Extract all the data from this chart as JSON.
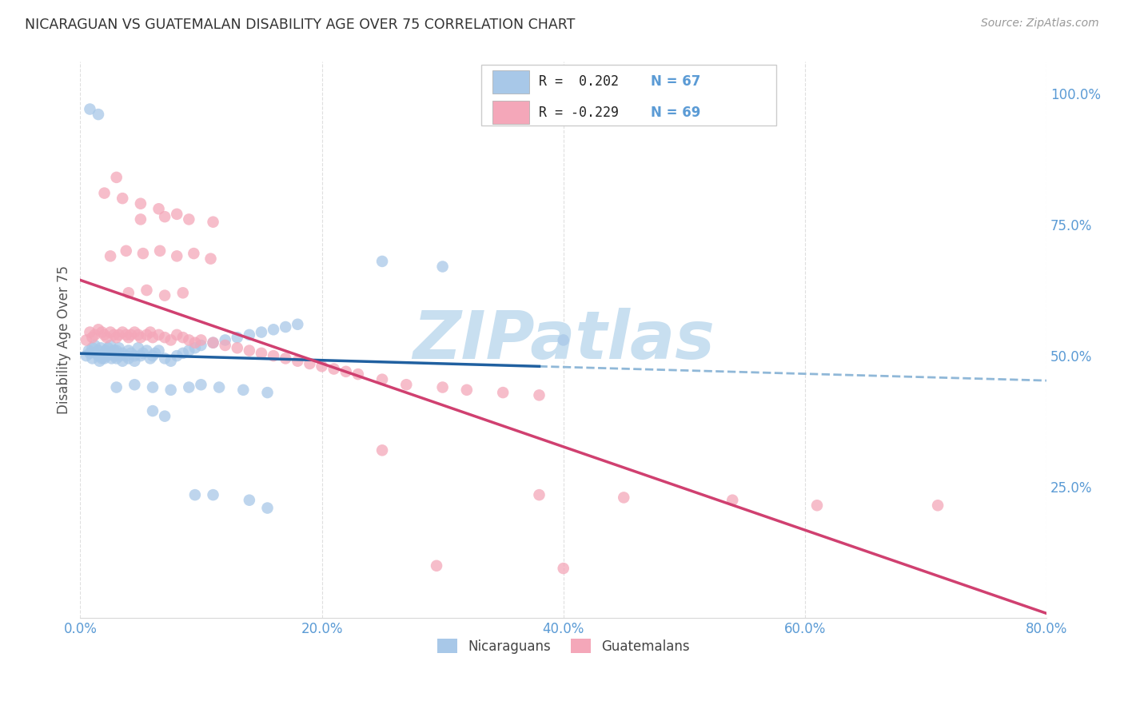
{
  "title": "NICARAGUAN VS GUATEMALAN DISABILITY AGE OVER 75 CORRELATION CHART",
  "source": "Source: ZipAtlas.com",
  "ylabel": "Disability Age Over 75",
  "xlim": [
    0.0,
    0.8
  ],
  "ylim": [
    0.0,
    1.06
  ],
  "xtick_labels": [
    "0.0%",
    "",
    "20.0%",
    "",
    "40.0%",
    "",
    "60.0%",
    "",
    "80.0%"
  ],
  "xtick_positions": [
    0.0,
    0.1,
    0.2,
    0.3,
    0.4,
    0.5,
    0.6,
    0.7,
    0.8
  ],
  "xtick_display": [
    "0.0%",
    "20.0%",
    "40.0%",
    "60.0%",
    "80.0%"
  ],
  "xtick_display_pos": [
    0.0,
    0.2,
    0.4,
    0.6,
    0.8
  ],
  "ytick_labels_right": [
    "25.0%",
    "50.0%",
    "75.0%",
    "100.0%"
  ],
  "ytick_positions_right": [
    0.25,
    0.5,
    0.75,
    1.0
  ],
  "blue_color": "#a8c8e8",
  "pink_color": "#f4a7b9",
  "blue_line_color": "#2060a0",
  "pink_line_color": "#d04070",
  "dashed_line_color": "#90b8d8",
  "title_color": "#333333",
  "axis_color": "#5b9bd5",
  "watermark_color": "#c8dff0",
  "background_color": "#ffffff",
  "grid_color": "#d8d8d8",
  "blue_r": 0.202,
  "pink_r": -0.229,
  "blue_n": 67,
  "pink_n": 69,
  "solid_line_end_x": 0.38,
  "nicaraguan_x": [
    0.005,
    0.007,
    0.008,
    0.01,
    0.01,
    0.012,
    0.013,
    0.015,
    0.015,
    0.016,
    0.017,
    0.018,
    0.02,
    0.02,
    0.021,
    0.022,
    0.023,
    0.025,
    0.025,
    0.026,
    0.028,
    0.028,
    0.03,
    0.03,
    0.032,
    0.033,
    0.035,
    0.035,
    0.038,
    0.04,
    0.04,
    0.042,
    0.045,
    0.045,
    0.048,
    0.05,
    0.052,
    0.055,
    0.058,
    0.06,
    0.062,
    0.065,
    0.07,
    0.075,
    0.08,
    0.085,
    0.09,
    0.095,
    0.1,
    0.11,
    0.12,
    0.13,
    0.14,
    0.15,
    0.16,
    0.17,
    0.18,
    0.03,
    0.045,
    0.06,
    0.075,
    0.09,
    0.1,
    0.115,
    0.135,
    0.155,
    0.4
  ],
  "nicaraguan_y": [
    0.5,
    0.51,
    0.505,
    0.495,
    0.515,
    0.52,
    0.505,
    0.5,
    0.51,
    0.49,
    0.515,
    0.495,
    0.505,
    0.495,
    0.51,
    0.5,
    0.515,
    0.505,
    0.52,
    0.495,
    0.51,
    0.5,
    0.495,
    0.51,
    0.515,
    0.5,
    0.505,
    0.49,
    0.5,
    0.51,
    0.495,
    0.505,
    0.5,
    0.49,
    0.515,
    0.5,
    0.505,
    0.51,
    0.495,
    0.5,
    0.505,
    0.51,
    0.495,
    0.49,
    0.5,
    0.505,
    0.51,
    0.515,
    0.52,
    0.525,
    0.53,
    0.535,
    0.54,
    0.545,
    0.55,
    0.555,
    0.56,
    0.44,
    0.445,
    0.44,
    0.435,
    0.44,
    0.445,
    0.44,
    0.435,
    0.43,
    0.53
  ],
  "nicaraguan_y_outliers": [
    0.97,
    0.96,
    0.68,
    0.67,
    0.395,
    0.385,
    0.235,
    0.235,
    0.225,
    0.21
  ],
  "nicaraguan_x_outliers": [
    0.008,
    0.015,
    0.25,
    0.3,
    0.06,
    0.07,
    0.095,
    0.11,
    0.14,
    0.155
  ],
  "guatemalan_x": [
    0.005,
    0.008,
    0.01,
    0.012,
    0.015,
    0.018,
    0.02,
    0.022,
    0.025,
    0.028,
    0.03,
    0.032,
    0.035,
    0.038,
    0.04,
    0.042,
    0.045,
    0.048,
    0.05,
    0.055,
    0.058,
    0.06,
    0.065,
    0.07,
    0.075,
    0.08,
    0.085,
    0.09,
    0.095,
    0.1,
    0.11,
    0.12,
    0.13,
    0.14,
    0.15,
    0.16,
    0.17,
    0.18,
    0.19,
    0.2,
    0.21,
    0.22,
    0.23,
    0.25,
    0.27,
    0.3,
    0.32,
    0.35,
    0.38,
    0.04,
    0.055,
    0.07,
    0.085,
    0.025,
    0.038,
    0.052,
    0.066,
    0.08,
    0.094,
    0.108,
    0.05,
    0.07,
    0.09,
    0.11,
    0.02,
    0.035,
    0.05,
    0.065,
    0.08
  ],
  "guatemalan_y": [
    0.53,
    0.545,
    0.535,
    0.54,
    0.55,
    0.545,
    0.54,
    0.535,
    0.545,
    0.54,
    0.535,
    0.54,
    0.545,
    0.54,
    0.535,
    0.54,
    0.545,
    0.54,
    0.535,
    0.54,
    0.545,
    0.535,
    0.54,
    0.535,
    0.53,
    0.54,
    0.535,
    0.53,
    0.525,
    0.53,
    0.525,
    0.52,
    0.515,
    0.51,
    0.505,
    0.5,
    0.495,
    0.49,
    0.485,
    0.48,
    0.475,
    0.47,
    0.465,
    0.455,
    0.445,
    0.44,
    0.435,
    0.43,
    0.425,
    0.62,
    0.625,
    0.615,
    0.62,
    0.69,
    0.7,
    0.695,
    0.7,
    0.69,
    0.695,
    0.685,
    0.76,
    0.765,
    0.76,
    0.755,
    0.81,
    0.8,
    0.79,
    0.78,
    0.77
  ],
  "guatemalan_y_outliers": [
    0.84,
    0.32,
    0.235,
    0.23,
    0.225,
    0.215,
    0.215,
    0.1,
    0.095
  ],
  "guatemalan_x_outliers": [
    0.03,
    0.25,
    0.38,
    0.45,
    0.54,
    0.61,
    0.71,
    0.295,
    0.4
  ]
}
